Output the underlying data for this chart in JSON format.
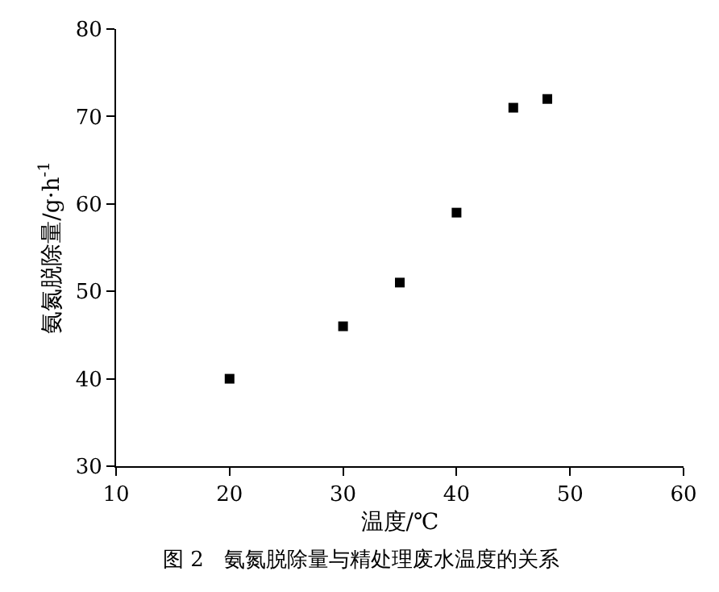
{
  "chart_data": {
    "type": "scatter",
    "xlabel": "温度/℃",
    "ylabel": "氨氮脱除量/g·h$^{-1}$",
    "x": [
      20,
      30,
      35,
      40,
      45,
      48
    ],
    "series": [
      {
        "color": "#000000",
        "values": [
          40,
          46,
          51,
          59,
          71,
          72
        ]
      }
    ],
    "xlim": [
      10,
      60
    ],
    "xticks": [
      10,
      20,
      30,
      40,
      50,
      60
    ],
    "ylim": [
      30,
      80
    ],
    "yticks": [
      30,
      40,
      50,
      60,
      70,
      80
    ],
    "marker": "square",
    "legend": false,
    "annotations": [
      "图 2   氨氮脱除量与精处理废水温度的关系"
    ]
  }
}
